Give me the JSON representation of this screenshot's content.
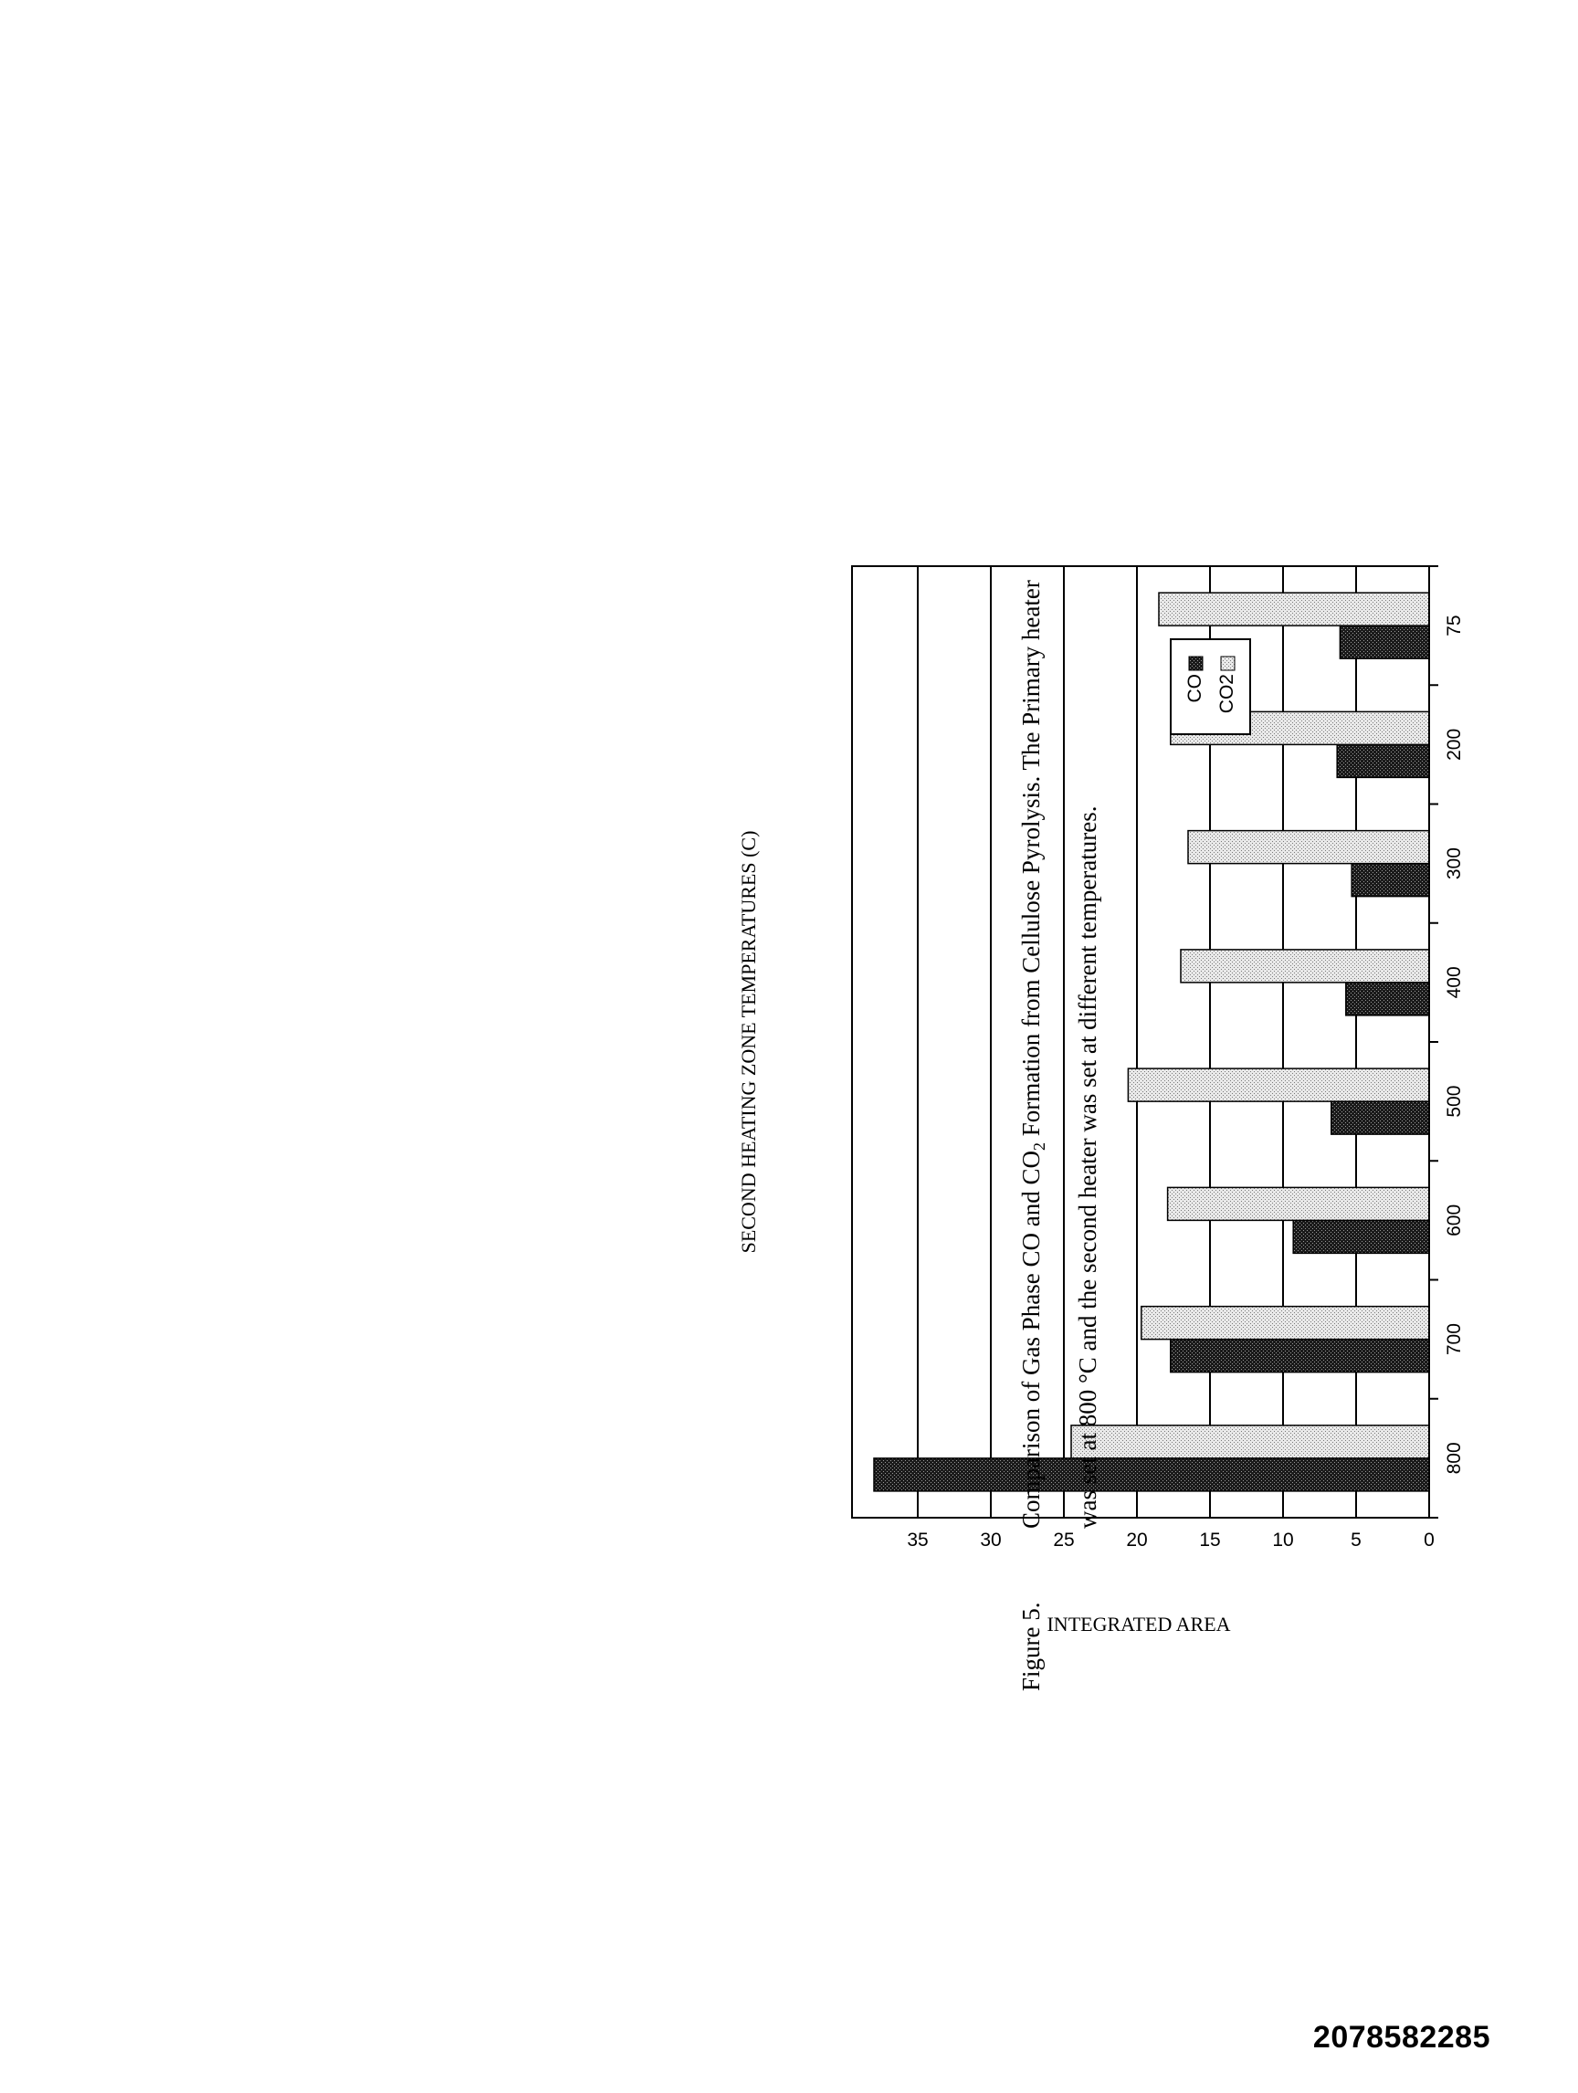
{
  "chart_data": {
    "type": "bar",
    "orientation": "rotated page (landscape figure)",
    "categories": [
      "800",
      "700",
      "600",
      "500",
      "400",
      "300",
      "200",
      "75"
    ],
    "series": [
      {
        "name": "CO",
        "values": [
          38.0,
          17.7,
          9.3,
          6.7,
          5.7,
          5.3,
          6.3,
          6.1
        ],
        "pattern": "dark"
      },
      {
        "name": "CO2",
        "values": [
          24.5,
          19.7,
          17.9,
          20.6,
          17.0,
          16.5,
          17.7,
          18.5
        ],
        "pattern": "light"
      }
    ],
    "xlabel": "SECOND HEATING ZONE TEMPERATURES (C)",
    "ylabel": "INTEGRATED AREA",
    "ylim": [
      0,
      39.5
    ],
    "yticks": [
      "0",
      "5",
      "10",
      "15",
      "20",
      "25",
      "30",
      "35"
    ],
    "grid": true,
    "legend": "upper-right (rotated)"
  },
  "caption": {
    "label": "Figure 5.",
    "line1_part1": "Comparison of Gas Phase CO and CO",
    "line1_sub": "2",
    "line1_part2": " Formation from Cellulose Pyrolysis.   The Primary heater",
    "line2": "was set at 800 °C and the second heater was set at different temperatures."
  },
  "document_id": "2078582285"
}
